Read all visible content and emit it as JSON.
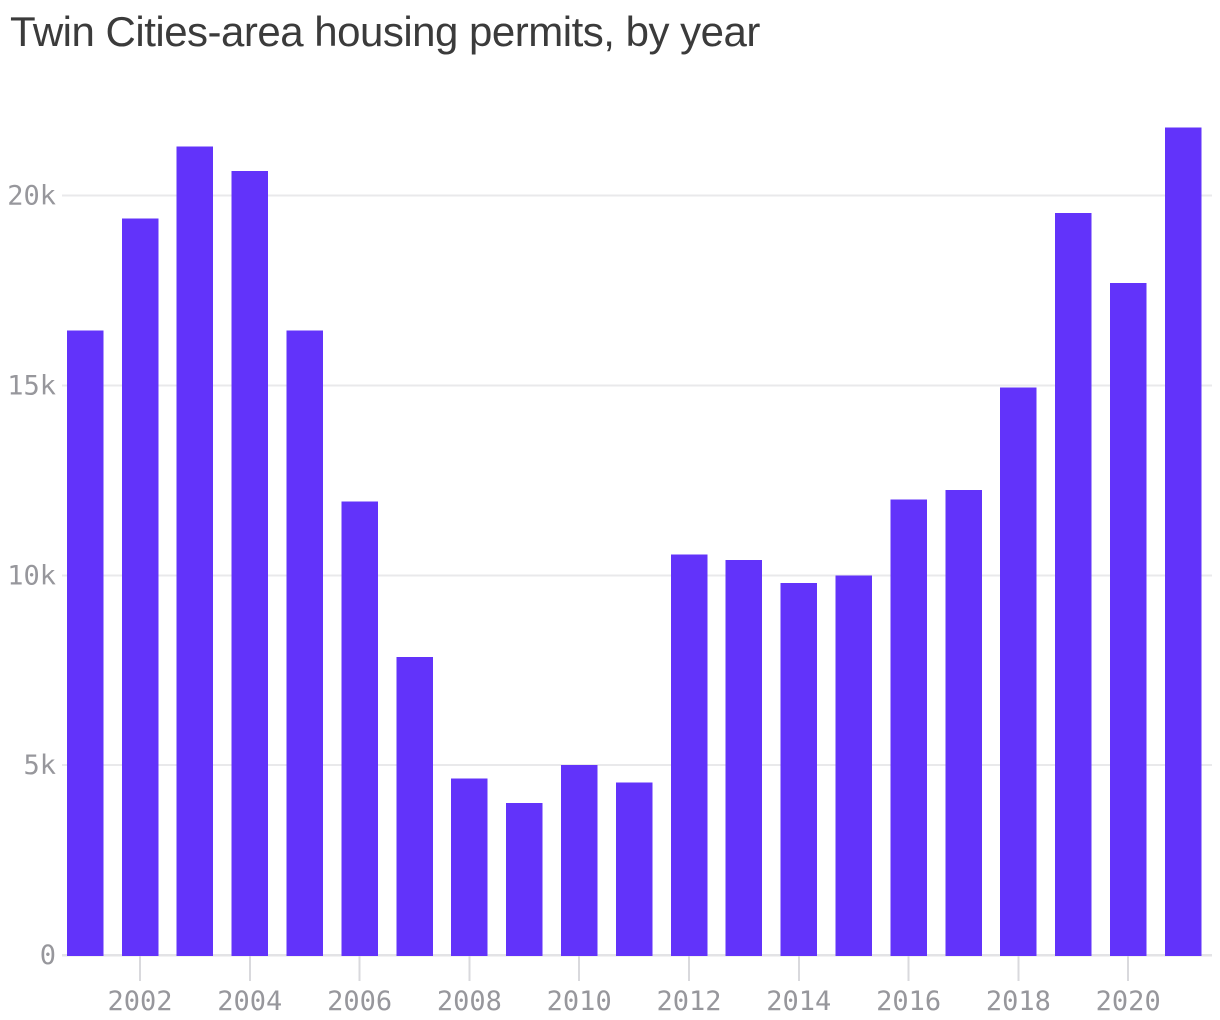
{
  "title": "Twin Cities-area housing permits, by year",
  "chart_data": {
    "type": "bar",
    "title": "Twin Cities-area housing permits, by year",
    "categories": [
      2001,
      2002,
      2003,
      2004,
      2005,
      2006,
      2007,
      2008,
      2009,
      2010,
      2011,
      2012,
      2013,
      2014,
      2015,
      2016,
      2017,
      2018,
      2019,
      2020,
      2021
    ],
    "values": [
      16450,
      19400,
      21300,
      20650,
      16450,
      11950,
      7850,
      4650,
      4000,
      5000,
      4550,
      10550,
      10400,
      9800,
      10000,
      12000,
      12250,
      14950,
      19550,
      17700,
      21800
    ],
    "xlabel": "",
    "ylabel": "",
    "ylim": [
      0,
      22250
    ],
    "ytick_values": [
      0,
      5000,
      10000,
      15000,
      20000
    ],
    "ytick_labels": [
      "0",
      "5k",
      "10k",
      "15k",
      "20k"
    ],
    "xtick_years": [
      2002,
      2004,
      2006,
      2008,
      2010,
      2012,
      2014,
      2016,
      2018,
      2020
    ],
    "grid": "horizontal gridlines on, vertical off",
    "legend": "none",
    "style": {
      "bar_color": "#6233fa",
      "grid_color": "#e9e9eb",
      "axis_line_color": "#e3e3e6",
      "tick_color": "#d9d9dd",
      "label_color": "#97979c",
      "title_color": "#3b3b3b",
      "background": "#ffffff"
    }
  }
}
